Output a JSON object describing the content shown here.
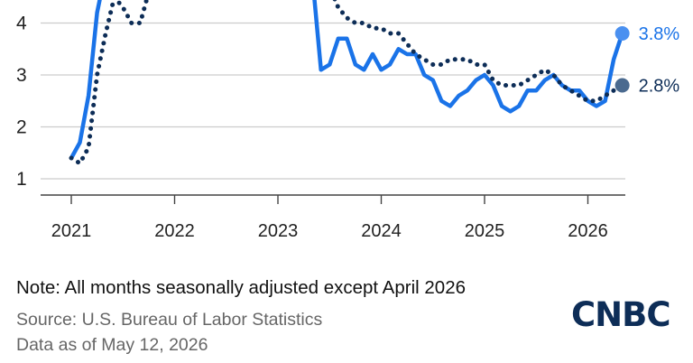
{
  "chart_data": {
    "type": "line",
    "title": "",
    "xlabel": "",
    "ylabel": "",
    "xlim": [
      2021.0,
      2026.3
    ],
    "ylim": [
      0.6,
      4.9
    ],
    "x_ticks": [
      "2021",
      "2022",
      "2023",
      "2024",
      "2025",
      "2026"
    ],
    "y_ticks": [
      "1",
      "2",
      "3",
      "4"
    ],
    "grid": true,
    "series": [
      {
        "name": "",
        "color": "#1a73e8",
        "style": "solid",
        "end_label": "3.8%",
        "points": [
          [
            2021.0,
            1.4
          ],
          [
            2021.083,
            1.7
          ],
          [
            2021.167,
            2.6
          ],
          [
            2021.25,
            4.2
          ],
          [
            2021.333,
            5.0
          ],
          [
            2023.25,
            5.0
          ],
          [
            2023.333,
            4.9
          ],
          [
            2023.417,
            3.1
          ],
          [
            2023.5,
            3.2
          ],
          [
            2023.583,
            3.7
          ],
          [
            2023.667,
            3.7
          ],
          [
            2023.75,
            3.2
          ],
          [
            2023.833,
            3.1
          ],
          [
            2023.917,
            3.4
          ],
          [
            2024.0,
            3.1
          ],
          [
            2024.083,
            3.2
          ],
          [
            2024.167,
            3.5
          ],
          [
            2024.25,
            3.4
          ],
          [
            2024.333,
            3.4
          ],
          [
            2024.417,
            3.0
          ],
          [
            2024.5,
            2.9
          ],
          [
            2024.583,
            2.5
          ],
          [
            2024.667,
            2.4
          ],
          [
            2024.75,
            2.6
          ],
          [
            2024.833,
            2.7
          ],
          [
            2024.917,
            2.9
          ],
          [
            2025.0,
            3.0
          ],
          [
            2025.083,
            2.8
          ],
          [
            2025.167,
            2.4
          ],
          [
            2025.25,
            2.3
          ],
          [
            2025.333,
            2.4
          ],
          [
            2025.417,
            2.7
          ],
          [
            2025.5,
            2.7
          ],
          [
            2025.583,
            2.9
          ],
          [
            2025.667,
            3.0
          ],
          [
            2025.75,
            2.8
          ],
          [
            2025.833,
            2.7
          ],
          [
            2025.917,
            2.7
          ],
          [
            2026.0,
            2.5
          ],
          [
            2026.083,
            2.4
          ],
          [
            2026.167,
            2.5
          ],
          [
            2026.25,
            3.3
          ],
          [
            2026.333,
            3.8
          ]
        ]
      },
      {
        "name": "",
        "color": "#0d2d57",
        "style": "dotted",
        "end_label": "2.8%",
        "points": [
          [
            2021.0,
            1.4
          ],
          [
            2021.083,
            1.3
          ],
          [
            2021.167,
            1.6
          ],
          [
            2021.25,
            3.0
          ],
          [
            2021.333,
            3.8
          ],
          [
            2021.417,
            4.5
          ],
          [
            2021.5,
            4.3
          ],
          [
            2021.583,
            4.0
          ],
          [
            2021.667,
            4.0
          ],
          [
            2021.75,
            4.6
          ],
          [
            2021.833,
            4.95
          ],
          [
            2023.333,
            4.95
          ],
          [
            2023.417,
            4.8
          ],
          [
            2023.5,
            4.7
          ],
          [
            2023.583,
            4.3
          ],
          [
            2023.667,
            4.1
          ],
          [
            2023.75,
            4.0
          ],
          [
            2023.833,
            4.0
          ],
          [
            2023.917,
            3.9
          ],
          [
            2024.0,
            3.9
          ],
          [
            2024.083,
            3.8
          ],
          [
            2024.167,
            3.8
          ],
          [
            2024.25,
            3.6
          ],
          [
            2024.333,
            3.4
          ],
          [
            2024.417,
            3.3
          ],
          [
            2024.5,
            3.2
          ],
          [
            2024.583,
            3.2
          ],
          [
            2024.667,
            3.3
          ],
          [
            2024.75,
            3.3
          ],
          [
            2024.833,
            3.3
          ],
          [
            2024.917,
            3.2
          ],
          [
            2025.0,
            3.2
          ],
          [
            2025.083,
            2.9
          ],
          [
            2025.167,
            2.8
          ],
          [
            2025.25,
            2.8
          ],
          [
            2025.333,
            2.8
          ],
          [
            2025.417,
            2.9
          ],
          [
            2025.5,
            3.0
          ],
          [
            2025.583,
            3.1
          ],
          [
            2025.667,
            3.0
          ],
          [
            2025.75,
            2.8
          ],
          [
            2025.833,
            2.7
          ],
          [
            2025.917,
            2.6
          ],
          [
            2026.0,
            2.5
          ],
          [
            2026.083,
            2.5
          ],
          [
            2026.167,
            2.6
          ],
          [
            2026.25,
            2.7
          ],
          [
            2026.333,
            2.8
          ]
        ]
      }
    ]
  },
  "footer": {
    "note": "Note: All months seasonally adjusted except April 2026",
    "source": "Source: U.S. Bureau of Labor Statistics",
    "as_of": "Data as of May 12, 2026"
  },
  "logo": {
    "text": "CNBC",
    "color": "#0d2d57"
  }
}
